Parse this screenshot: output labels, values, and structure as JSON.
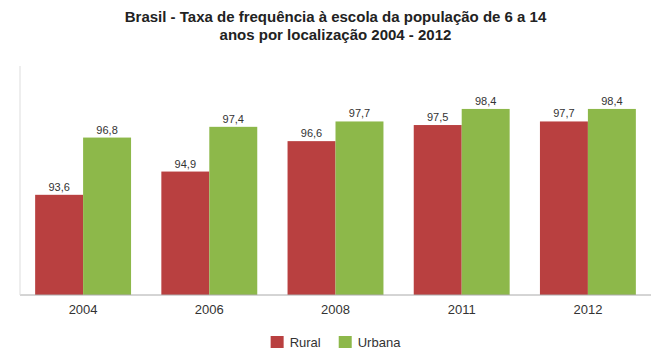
{
  "chart_data": {
    "type": "bar",
    "title": "Brasil - Taxa de frequência à escola da população de 6 a 14\nanos por localização 2004 - 2012",
    "categories": [
      "2004",
      "2006",
      "2008",
      "2011",
      "2012"
    ],
    "series": [
      {
        "name": "Rural",
        "color": "#b94040",
        "values": [
          93.6,
          94.9,
          96.6,
          97.5,
          97.7
        ],
        "value_labels": [
          "93,6",
          "94,9",
          "96,6",
          "97,5",
          "97,7"
        ]
      },
      {
        "name": "Urbana",
        "color": "#8db84a",
        "values": [
          96.8,
          97.4,
          97.7,
          98.4,
          98.4
        ],
        "value_labels": [
          "96,8",
          "97,4",
          "97,7",
          "98,4",
          "98,4"
        ]
      }
    ],
    "ylim": [
      88.0,
      100.8
    ],
    "data_labels": true,
    "tick_labels": "x",
    "grid": false,
    "legend": "bottom"
  }
}
